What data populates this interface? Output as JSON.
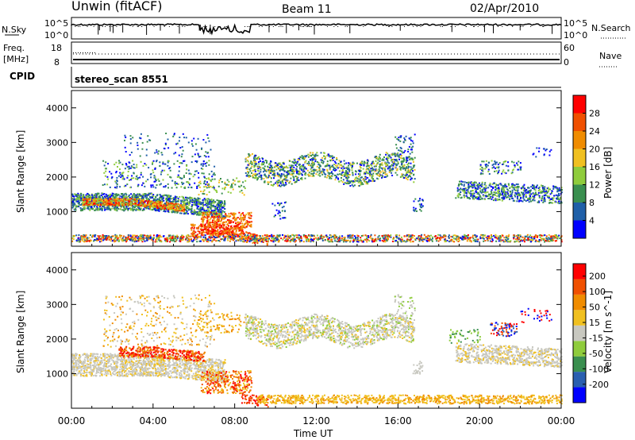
{
  "header": {
    "station": "Unwin (fitACF)",
    "beam": "Beam 11",
    "date": "02/Apr/2010"
  },
  "noise_panel": {
    "left_label": "N.Sky",
    "right_label": "N.Search",
    "left_ticks": [
      "10^5",
      "10^0"
    ],
    "right_ticks": [
      "10^5",
      "10^0"
    ]
  },
  "freq_panel": {
    "left_label_1": "Freq.",
    "left_label_2": "[MHz]",
    "left_ticks": [
      "18",
      "8"
    ],
    "right_label": "Nave",
    "right_ticks": [
      "60",
      "0"
    ]
  },
  "cpid": {
    "label": "CPID",
    "value": "stereo_scan 8551"
  },
  "colors": {
    "power_scale": [
      "#0000ff",
      "#1f5fa8",
      "#3a8f4f",
      "#8fcc3c",
      "#f0c020",
      "#f08c00",
      "#f05000",
      "#ff0000"
    ],
    "velocity_scale": [
      "#0000ff",
      "#2a5fb0",
      "#3a8f4f",
      "#8fcc3c",
      "#c8c8c0",
      "#f0c020",
      "#f08c00",
      "#f05000",
      "#ff0000"
    ]
  },
  "chart_data": [
    {
      "type": "heatmap",
      "name": "power",
      "title": "",
      "xlabel": "",
      "ylabel": "Slant Range [km]",
      "xlim": [
        "00:00",
        "24:00"
      ],
      "ylim": [
        0,
        4500
      ],
      "y_ticks": [
        1000,
        2000,
        3000,
        4000
      ],
      "colorbar_label": "Power [dB]",
      "colorbar_ticks": [
        4,
        8,
        12,
        16,
        20,
        24,
        28
      ],
      "colorbar_range": [
        0,
        32
      ],
      "bands": [
        {
          "t": [
            0.0,
            7.0
          ],
          "r": [
            1050,
            1500
          ],
          "level": "green-high",
          "note": "strong band"
        },
        {
          "t": [
            0.0,
            7.5
          ],
          "r": [
            1300,
            1500
          ],
          "level": "blue-mid"
        },
        {
          "t": [
            2.0,
            6.0
          ],
          "r": [
            1350,
            1550
          ],
          "level": "orange-red"
        },
        {
          "t": [
            6.0,
            9.5
          ],
          "r": [
            200,
            1000
          ],
          "level": "red-orange"
        },
        {
          "t": [
            9.0,
            17.0
          ],
          "r": [
            1900,
            2500
          ],
          "level": "blue-green"
        },
        {
          "t": [
            19.5,
            24.0
          ],
          "r": [
            1400,
            1800
          ],
          "level": "blue-green"
        },
        {
          "t": [
            2.0,
            6.0
          ],
          "r": [
            2200,
            3300
          ],
          "level": "blue-sparse"
        }
      ]
    },
    {
      "type": "heatmap",
      "name": "velocity",
      "title": "",
      "xlabel": "Time UT",
      "ylabel": "Slant Range [km]",
      "xlim": [
        "00:00",
        "24:00"
      ],
      "ylim": [
        0,
        4500
      ],
      "y_ticks": [
        1000,
        2000,
        3000,
        4000
      ],
      "x_ticks": [
        "00:00",
        "04:00",
        "08:00",
        "12:00",
        "16:00",
        "20:00",
        "00:00"
      ],
      "colorbar_label": "Velocity [m s^-1]",
      "colorbar_ticks": [
        200,
        100,
        50,
        15,
        -15,
        -50,
        -100,
        -200
      ]
    }
  ]
}
